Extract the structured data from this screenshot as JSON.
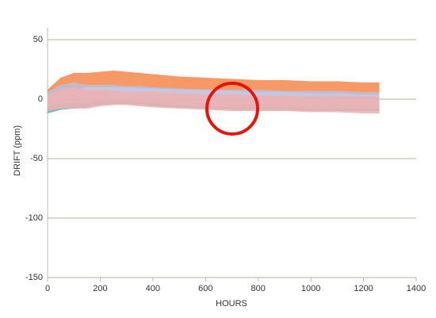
{
  "chart_data": {
    "type": "band",
    "x_label": "HOURS",
    "y_label": "DRIFT (ppm)",
    "xlim": [
      0,
      1400
    ],
    "xticks": [
      0,
      200,
      400,
      600,
      800,
      1000,
      1200,
      1400
    ],
    "ylim": [
      -150,
      60
    ],
    "yticks": [
      -150,
      -100,
      -50,
      0,
      50
    ],
    "grid": true,
    "x": [
      0,
      50,
      100,
      150,
      200,
      250,
      300,
      350,
      400,
      500,
      600,
      700,
      800,
      900,
      1000,
      1100,
      1200,
      1260
    ],
    "series": [
      {
        "color": "#5bb5b0",
        "high": [
          -2,
          0,
          0,
          -1,
          0,
          0,
          0,
          0,
          -1,
          -2,
          -3,
          -4,
          -4,
          -4,
          -5,
          -5,
          -5,
          -5
        ],
        "low": [
          -12,
          -9,
          -8,
          -7,
          -5,
          -4,
          -4,
          -5,
          -6,
          -7,
          -8,
          -9,
          -9,
          -9,
          -10,
          -10,
          -10,
          -10
        ]
      },
      {
        "color": "#f4874b",
        "high": [
          8,
          18,
          22,
          22,
          23,
          24,
          23,
          22,
          21,
          19,
          18,
          17,
          16,
          16,
          15,
          15,
          14,
          14
        ],
        "low": [
          0,
          5,
          8,
          10,
          10,
          10,
          10,
          9,
          9,
          8,
          8,
          7,
          6,
          6,
          5,
          5,
          4,
          4
        ]
      },
      {
        "color": "#b9bedb",
        "high": [
          6,
          12,
          14,
          12,
          12,
          12,
          11,
          11,
          10,
          9,
          8,
          8,
          8,
          7,
          7,
          7,
          6,
          6
        ],
        "low": [
          -6,
          -4,
          -3,
          -4,
          -2,
          -1,
          -1,
          -2,
          -3,
          -5,
          -6,
          -7,
          -7,
          -7,
          -8,
          -8,
          -8,
          -8
        ]
      },
      {
        "color": "#f0b0b0",
        "high": [
          4,
          8,
          10,
          8,
          8,
          7,
          6,
          6,
          6,
          5,
          4,
          4,
          3,
          3,
          2,
          2,
          2,
          2
        ],
        "low": [
          -10,
          -8,
          -8,
          -8,
          -6,
          -5,
          -5,
          -6,
          -7,
          -8,
          -9,
          -10,
          -10,
          -10,
          -11,
          -11,
          -12,
          -12
        ]
      }
    ]
  }
}
